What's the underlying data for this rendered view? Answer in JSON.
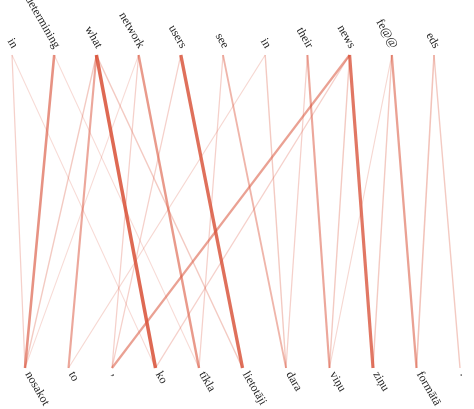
{
  "source_tokens": [
    "in",
    "determining",
    "what",
    "network",
    "users",
    "see",
    "in",
    "their",
    "news",
    "fe@@",
    "eds"
  ],
  "target_tokens": [
    "nosakot",
    "to",
    ",",
    "ko",
    "tīkla",
    "lietotāji",
    "dara",
    "viņu",
    "ziņu",
    "formātā",
    "."
  ],
  "edges": [
    {
      "source": 1,
      "target": 0,
      "weight": 0.6
    },
    {
      "source": 0,
      "target": 0,
      "weight": 0.15
    },
    {
      "source": 2,
      "target": 3,
      "weight": 0.9
    },
    {
      "source": 2,
      "target": 1,
      "weight": 0.45
    },
    {
      "source": 2,
      "target": 0,
      "weight": 0.2
    },
    {
      "source": 2,
      "target": 5,
      "weight": 0.2
    },
    {
      "source": 3,
      "target": 4,
      "weight": 0.55
    },
    {
      "source": 3,
      "target": 2,
      "weight": 0.15
    },
    {
      "source": 4,
      "target": 5,
      "weight": 0.85
    },
    {
      "source": 4,
      "target": 2,
      "weight": 0.15
    },
    {
      "source": 5,
      "target": 6,
      "weight": 0.35
    },
    {
      "source": 5,
      "target": 4,
      "weight": 0.15
    },
    {
      "source": 6,
      "target": 6,
      "weight": 0.2
    },
    {
      "source": 6,
      "target": 1,
      "weight": 0.1
    },
    {
      "source": 7,
      "target": 7,
      "weight": 0.45
    },
    {
      "source": 7,
      "target": 6,
      "weight": 0.15
    },
    {
      "source": 8,
      "target": 2,
      "weight": 0.5
    },
    {
      "source": 8,
      "target": 8,
      "weight": 0.8
    },
    {
      "source": 8,
      "target": 3,
      "weight": 0.15
    },
    {
      "source": 8,
      "target": 7,
      "weight": 0.2
    },
    {
      "source": 9,
      "target": 9,
      "weight": 0.5
    },
    {
      "source": 9,
      "target": 8,
      "weight": 0.2
    },
    {
      "source": 10,
      "target": 9,
      "weight": 0.25
    },
    {
      "source": 10,
      "target": 10,
      "weight": 0.2
    },
    {
      "source": 0,
      "target": 3,
      "weight": 0.08
    },
    {
      "source": 1,
      "target": 4,
      "weight": 0.08
    },
    {
      "source": 3,
      "target": 0,
      "weight": 0.08
    },
    {
      "source": 9,
      "target": 7,
      "weight": 0.1
    }
  ]
}
